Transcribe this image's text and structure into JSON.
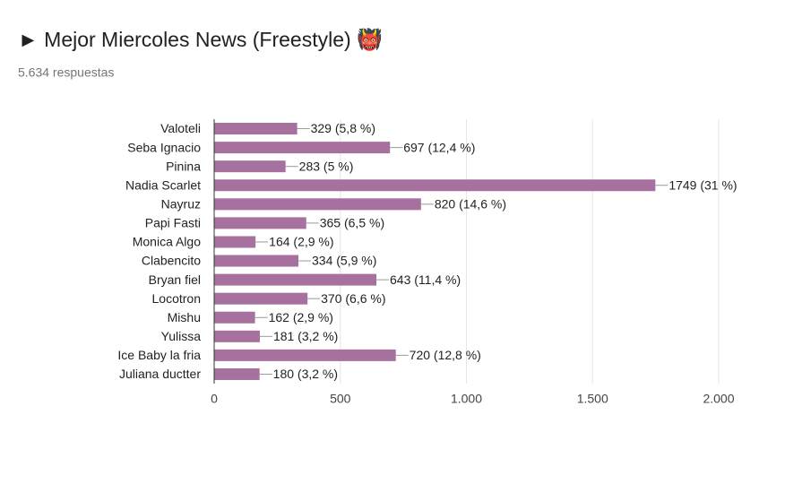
{
  "chart_data": {
    "type": "bar",
    "title": "► Mejor Miercoles News (Freestyle) 👹",
    "subtitle": "5.634 respuestas",
    "categories": [
      "Valoteli",
      "Seba Ignacio",
      "Pinina",
      "Nadia Scarlet",
      "Nayruz",
      "Papi Fasti",
      "Monica Algo",
      "Clabencito",
      "Bryan fiel",
      "Locotron",
      "Mishu",
      "Yulissa",
      "Ice Baby la fria",
      "Juliana ductter"
    ],
    "values": [
      329,
      697,
      283,
      1749,
      820,
      365,
      164,
      334,
      643,
      370,
      162,
      181,
      720,
      180
    ],
    "value_labels": [
      "329 (5,8 %)",
      "697 (12,4 %)",
      "283 (5 %)",
      "1749 (31 %)",
      "820 (14,6 %)",
      "365 (6,5 %)",
      "164 (2,9 %)",
      "334 (5,9 %)",
      "643 (11,4 %)",
      "370 (6,6 %)",
      "162 (2,9 %)",
      "181 (3,2 %)",
      "720 (12,8 %)",
      "180 (3,2 %)"
    ],
    "color": "#a6709f",
    "xlim": [
      0,
      2000
    ],
    "xticks": [
      0,
      500,
      {
        "value": 1000,
        "label": "1.000"
      },
      {
        "value": 1500,
        "label": "1.500"
      },
      {
        "value": 2000,
        "label": "2.000"
      }
    ],
    "grid": true
  }
}
